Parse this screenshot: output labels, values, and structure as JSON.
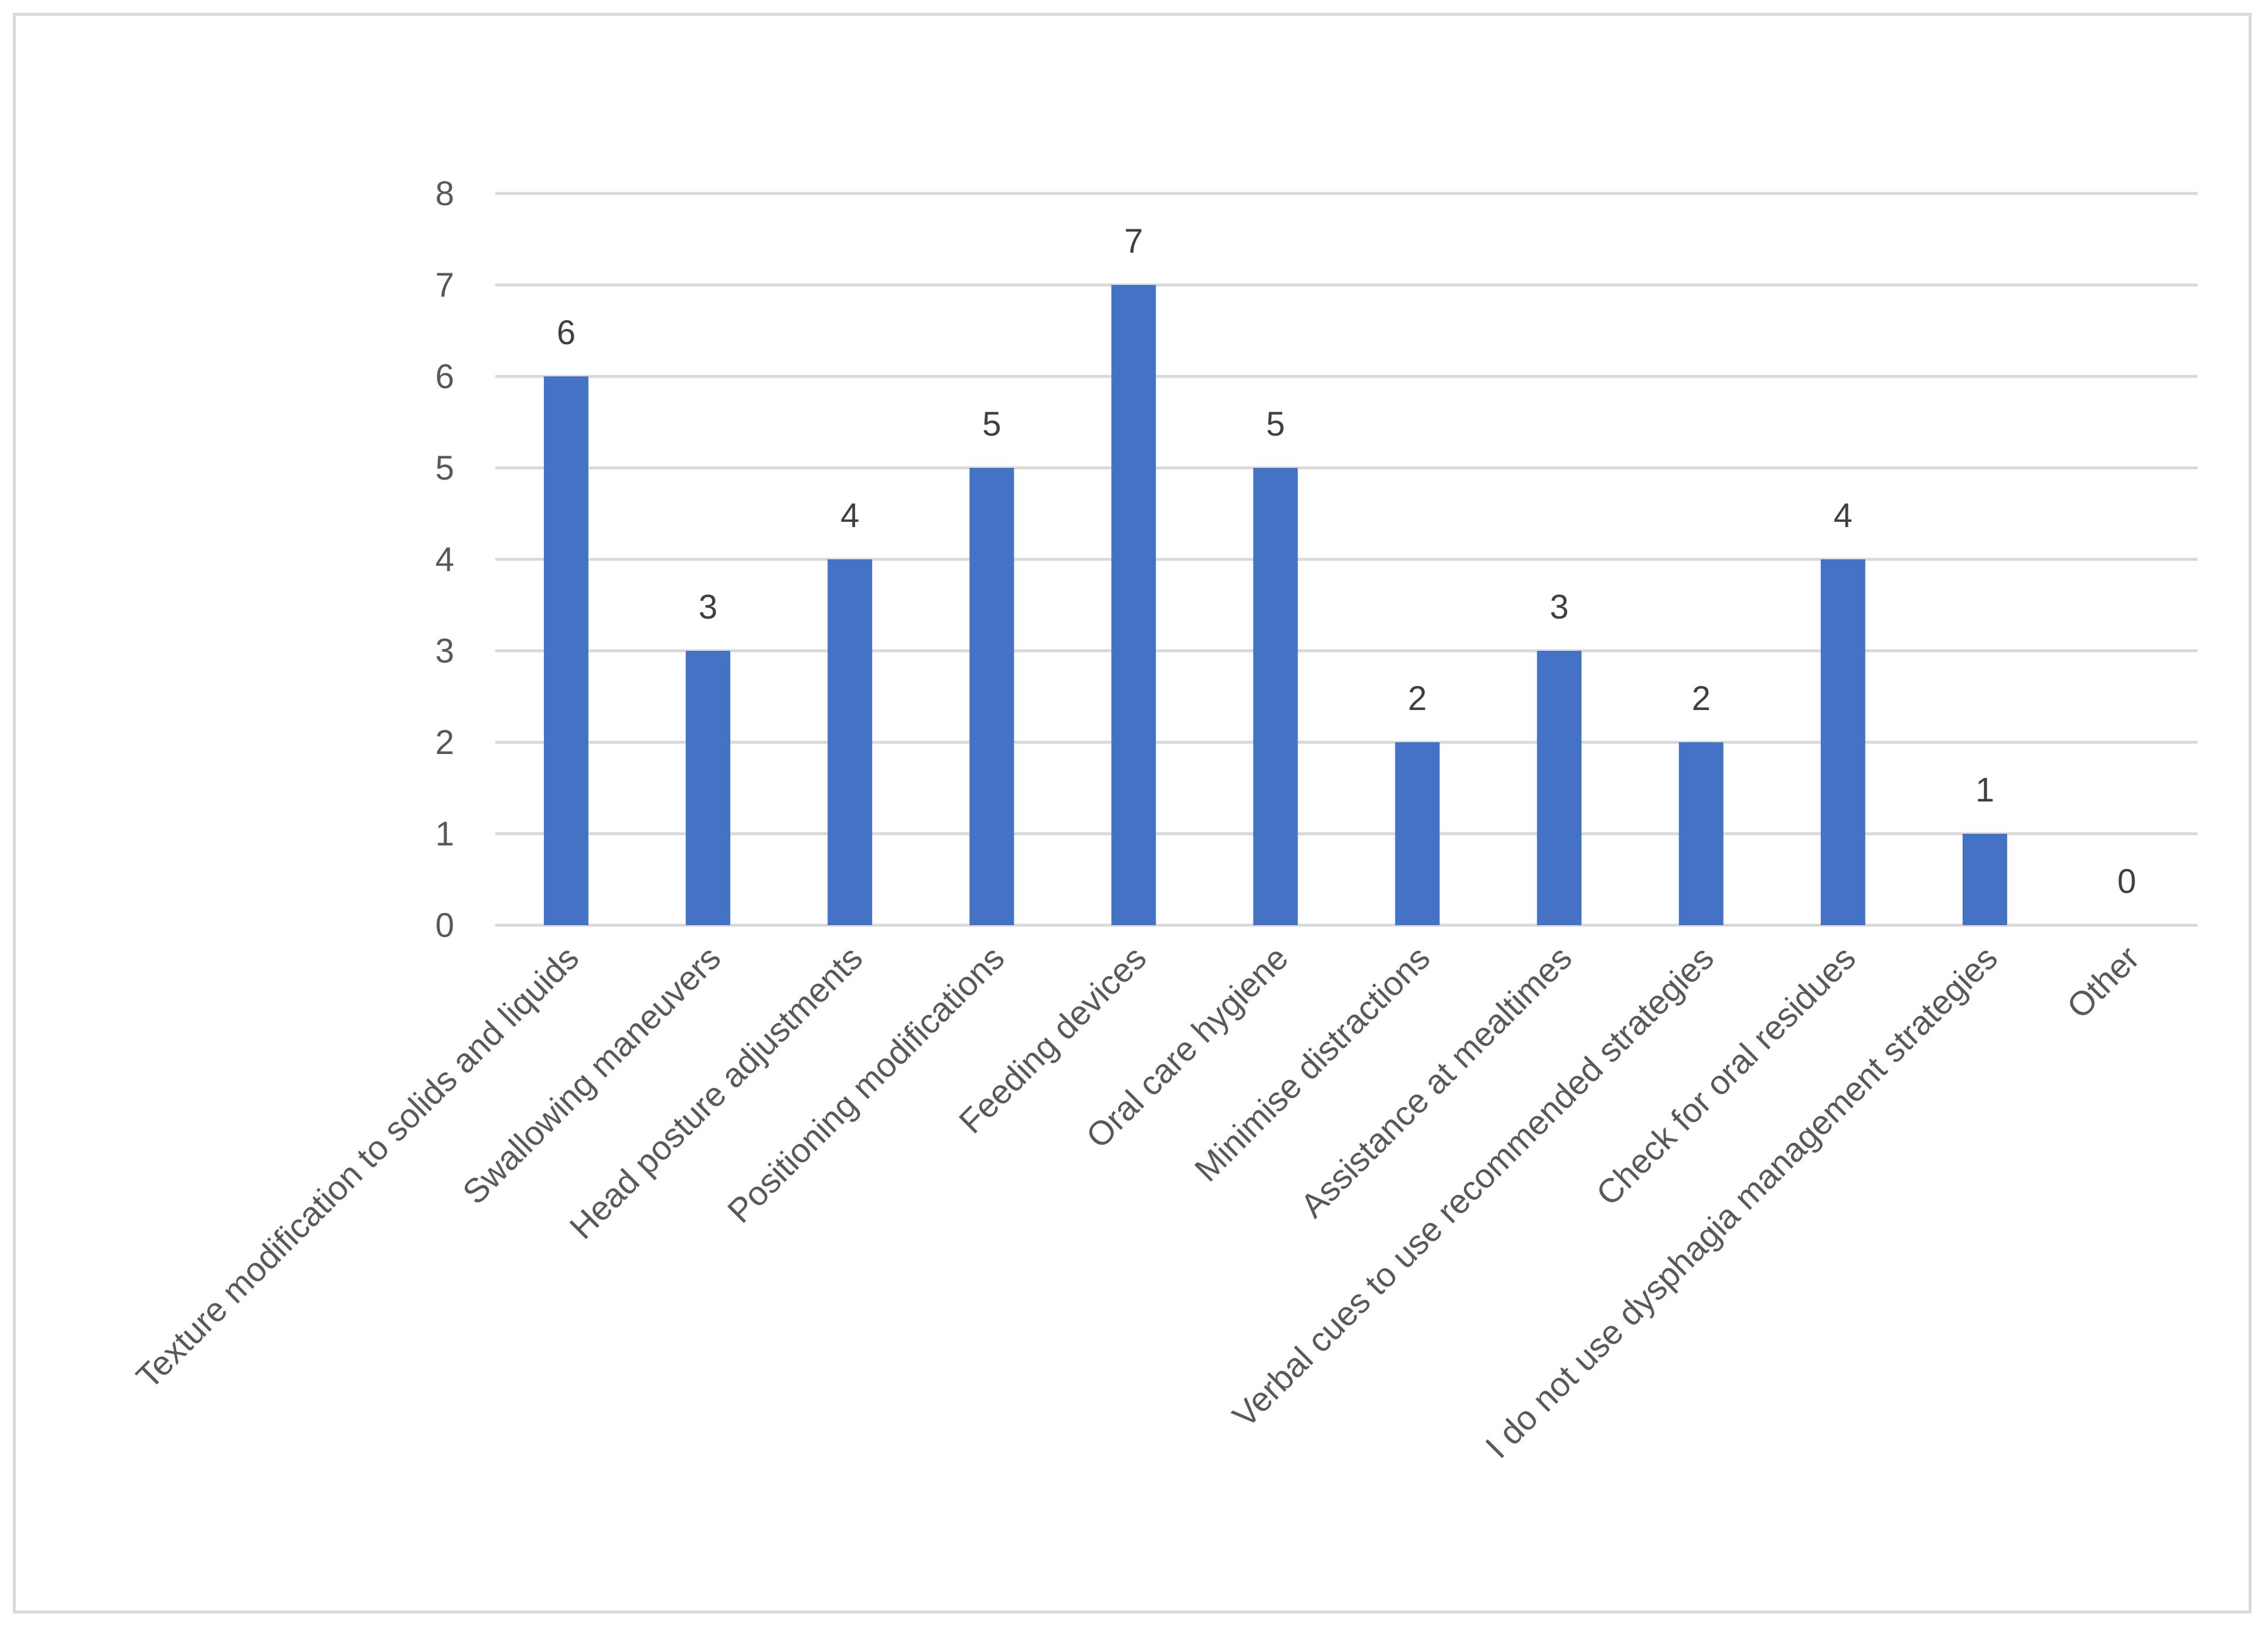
{
  "chart_data": {
    "type": "bar",
    "title": "",
    "xlabel": "",
    "ylabel": "",
    "categories": [
      "Texture modification to solids and liquids",
      "Swallowing maneuvers",
      "Head posture adjustments",
      "Positioning modifications",
      "Feeding devices",
      "Oral care hygiene",
      "Minimise distractions",
      "Assistance at mealtimes",
      "Verbal cues to use recommended strategies",
      "Check for oral residues",
      "I do not use dysphagia management strategies",
      "Other"
    ],
    "values": [
      6,
      3,
      4,
      5,
      7,
      5,
      2,
      3,
      2,
      4,
      1,
      0
    ],
    "ylim": [
      0,
      8
    ],
    "yticks": [
      0,
      1,
      2,
      3,
      4,
      5,
      6,
      7,
      8
    ],
    "grid": true,
    "legend": "none",
    "data_labels": true,
    "colors": {
      "bar": "#4472c4",
      "grid": "#d9d9d9",
      "axis_text": "#595959",
      "data_label_text": "#404040",
      "frame": "#d9d9d9"
    }
  }
}
